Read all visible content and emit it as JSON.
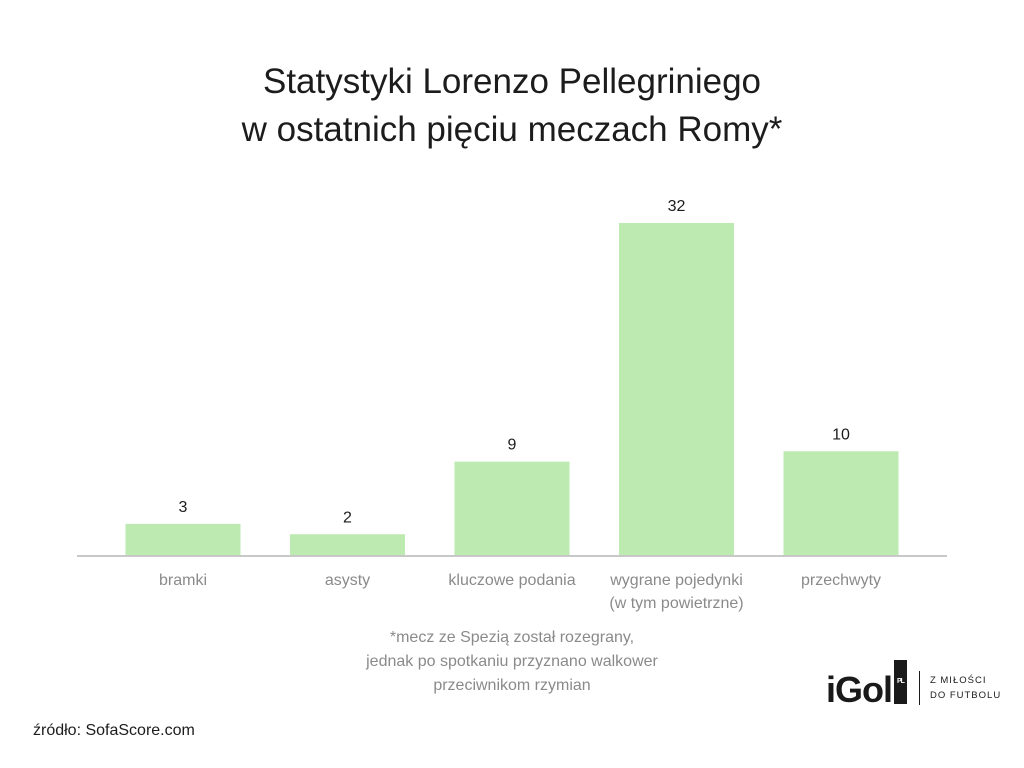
{
  "title_lines": [
    "Statystyki Lorenzo Pellegriniego",
    "w ostatnich pięciu meczach Romy*"
  ],
  "note_lines": [
    "*mecz ze Spezią został rozegrany,",
    "jednak po spotkaniu przyznano walkower",
    "przeciwnikom rzymian"
  ],
  "source": "źródło: SofaScore.com",
  "logo": {
    "mark": "iGol",
    "badge": "PL",
    "tagline": [
      "Z MIŁOŚCI",
      "DO FUTBOLU"
    ]
  },
  "colors": {
    "bar": "#bdeab0",
    "axis": "#c8c8c8",
    "tick_label": "#8a8a8a",
    "value_label": "#1c1c1c"
  },
  "chart_data": {
    "type": "bar",
    "categories": [
      [
        "bramki"
      ],
      [
        "asysty"
      ],
      [
        "kluczowe podania"
      ],
      [
        "wygrane pojedynki",
        "(w tym powietrzne)"
      ],
      [
        "przechwyty"
      ]
    ],
    "values": [
      3,
      2,
      9,
      32,
      10
    ],
    "ylim": [
      0,
      32
    ],
    "grid": false,
    "legend": "none"
  }
}
